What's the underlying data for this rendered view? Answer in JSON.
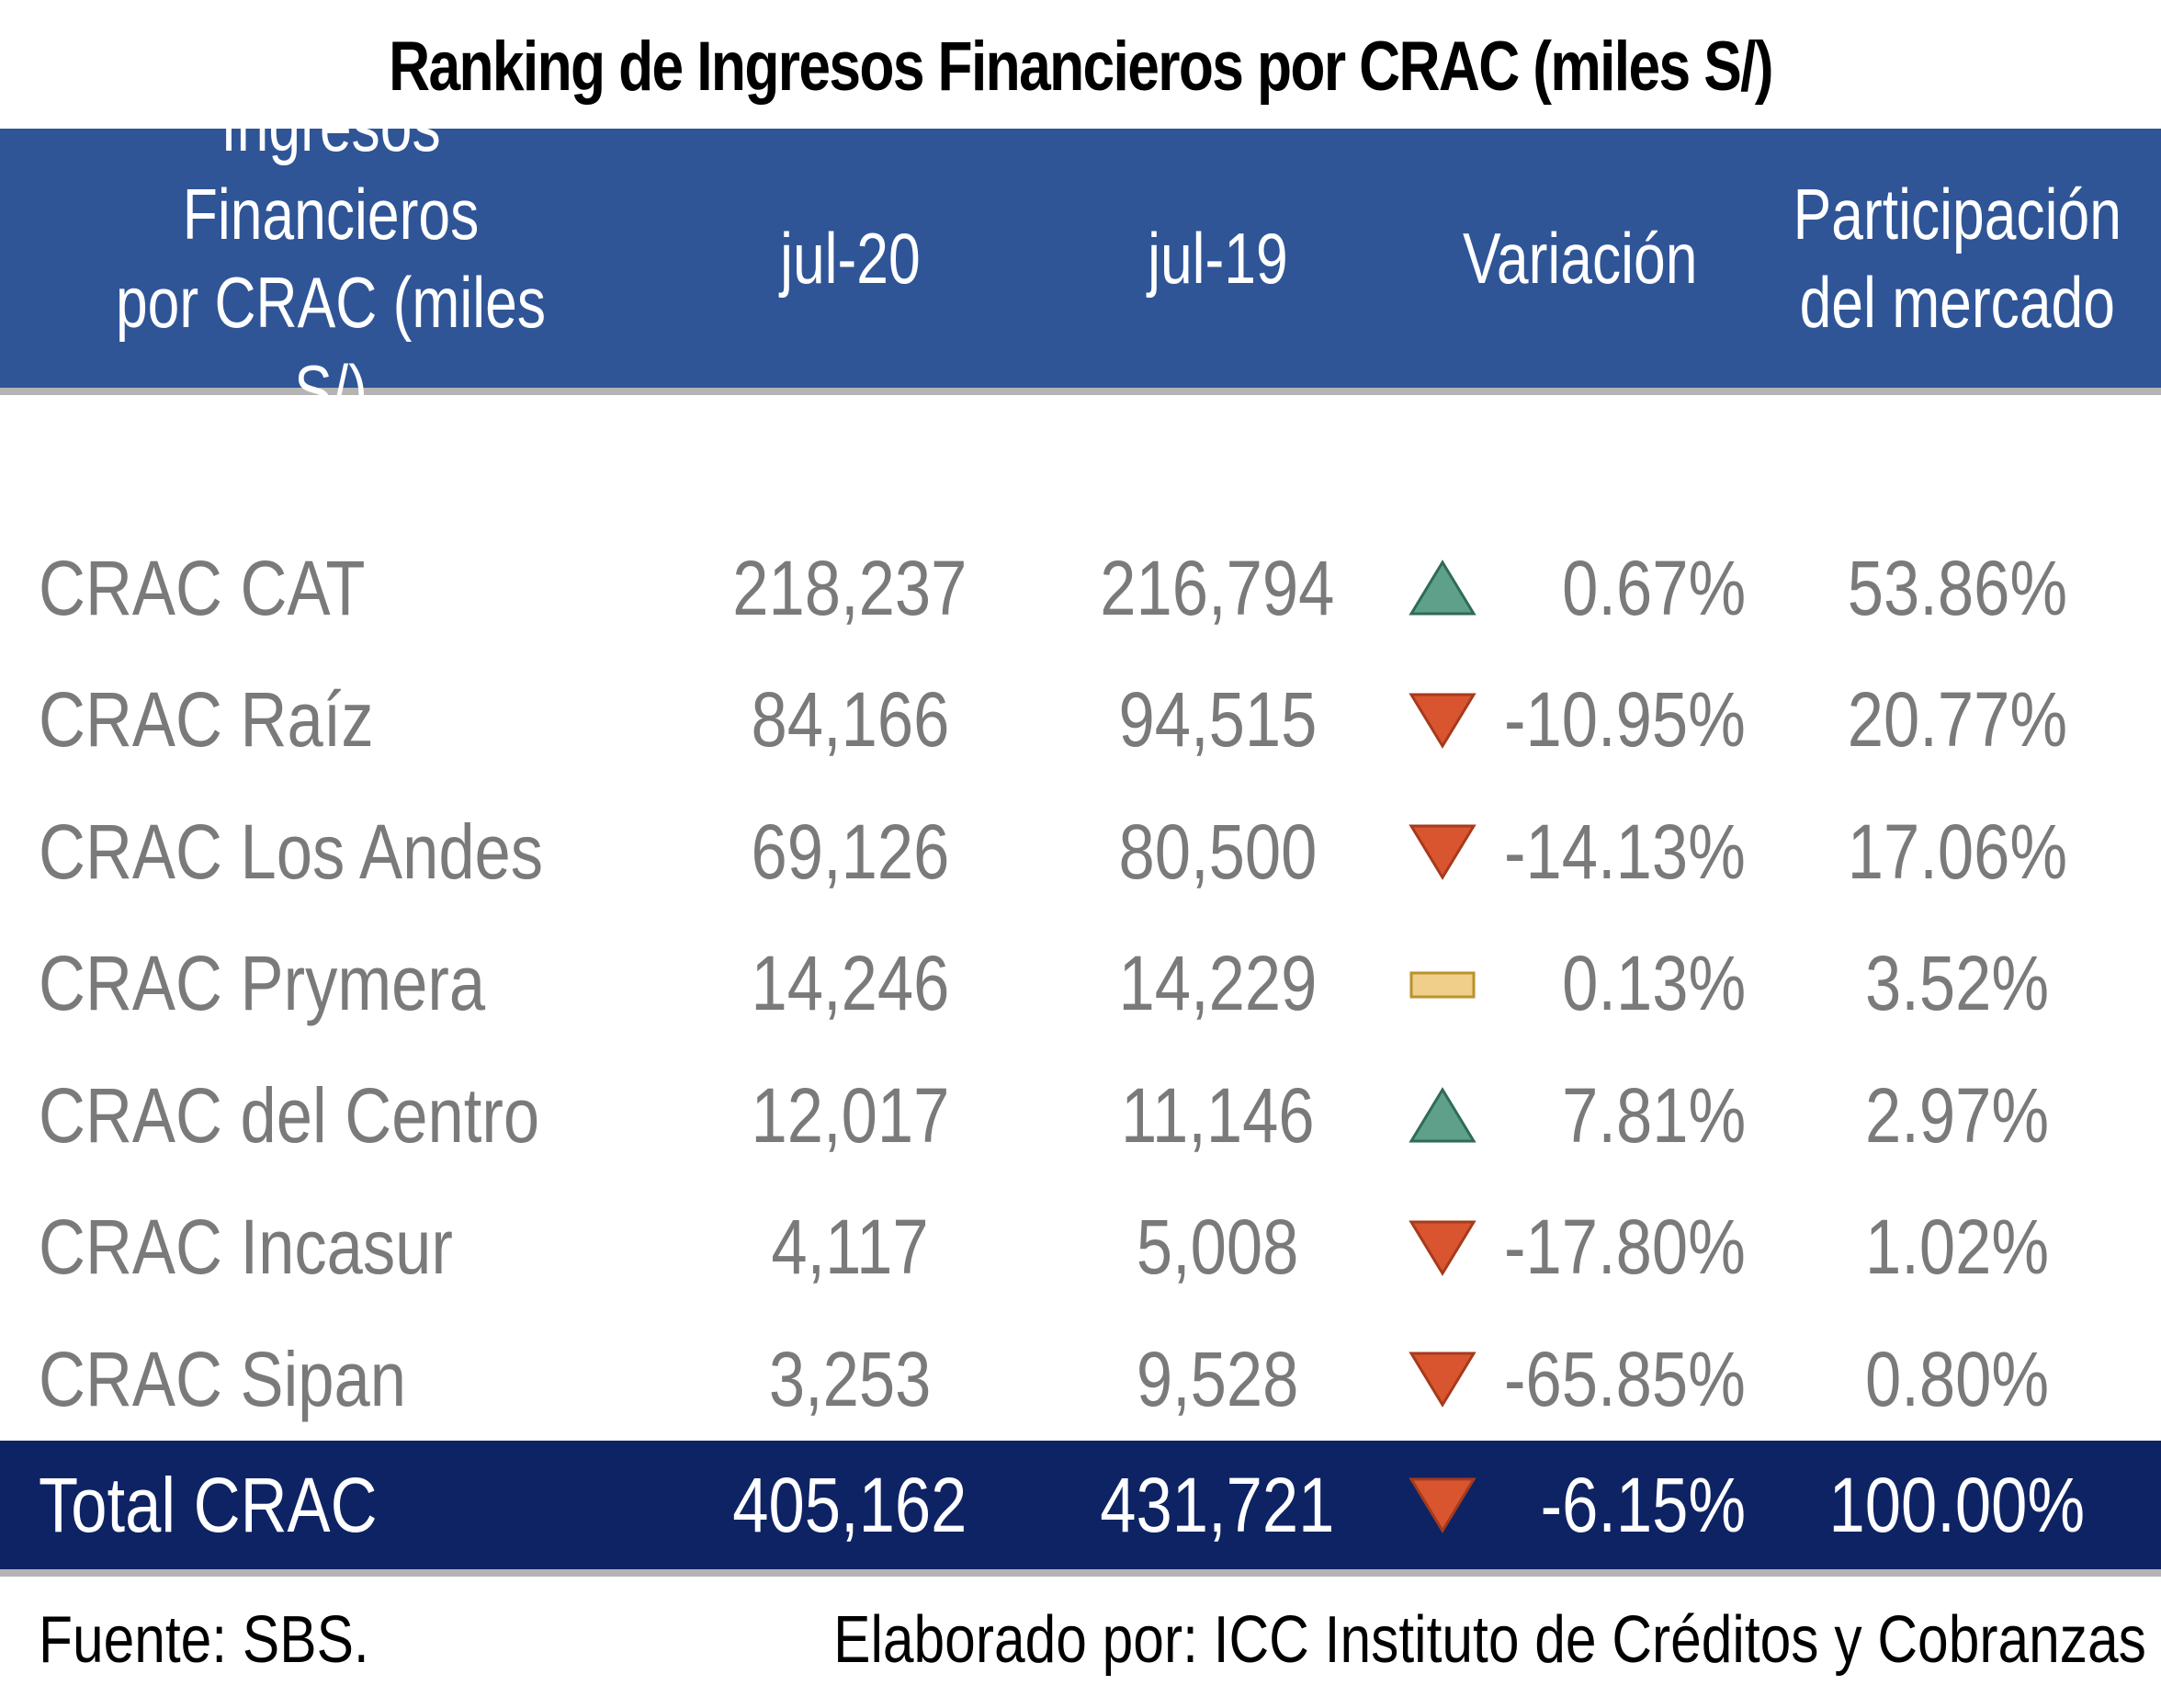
{
  "title": "Ranking de Ingresos Financieros por CRAC (miles S/)",
  "chart_data": {
    "type": "table",
    "title": "Ranking de Ingresos Financieros por CRAC (miles S/)",
    "columns": [
      "Ingresos Financieros\npor CRAC (miles S/)",
      "jul-20",
      "jul-19",
      "Variación",
      "Participación\ndel mercado"
    ],
    "rows": [
      {
        "name": "CRAC CAT",
        "jul20": "218,237",
        "jul19": "216,794",
        "trend": "up",
        "variation": "0.67%",
        "share": "53.86%"
      },
      {
        "name": "CRAC Raíz",
        "jul20": "84,166",
        "jul19": "94,515",
        "trend": "down",
        "variation": "-10.95%",
        "share": "20.77%"
      },
      {
        "name": "CRAC Los Andes",
        "jul20": "69,126",
        "jul19": "80,500",
        "trend": "down",
        "variation": "-14.13%",
        "share": "17.06%"
      },
      {
        "name": "CRAC Prymera",
        "jul20": "14,246",
        "jul19": "14,229",
        "trend": "flat",
        "variation": "0.13%",
        "share": "3.52%"
      },
      {
        "name": "CRAC del Centro",
        "jul20": "12,017",
        "jul19": "11,146",
        "trend": "up",
        "variation": "7.81%",
        "share": "2.97%"
      },
      {
        "name": "CRAC Incasur",
        "jul20": "4,117",
        "jul19": "5,008",
        "trend": "down",
        "variation": "-17.80%",
        "share": "1.02%"
      },
      {
        "name": "CRAC Sipan",
        "jul20": "3,253",
        "jul19": "9,528",
        "trend": "down",
        "variation": "-65.85%",
        "share": "0.80%"
      }
    ],
    "total": {
      "name": "Total CRAC",
      "jul20": "405,162",
      "jul19": "431,721",
      "trend": "down",
      "variation": "-6.15%",
      "share": "100.00%"
    }
  },
  "footer": {
    "source": "Fuente: SBS.",
    "credit": "Elaborado por: ICC Instituto de Créditos y Cobranzas"
  },
  "colors": {
    "header_bg": "#2f5597",
    "total_bg": "#0e2364",
    "up": "#5fa08a",
    "down": "#d9552f",
    "flat": "#f0cf8a"
  }
}
